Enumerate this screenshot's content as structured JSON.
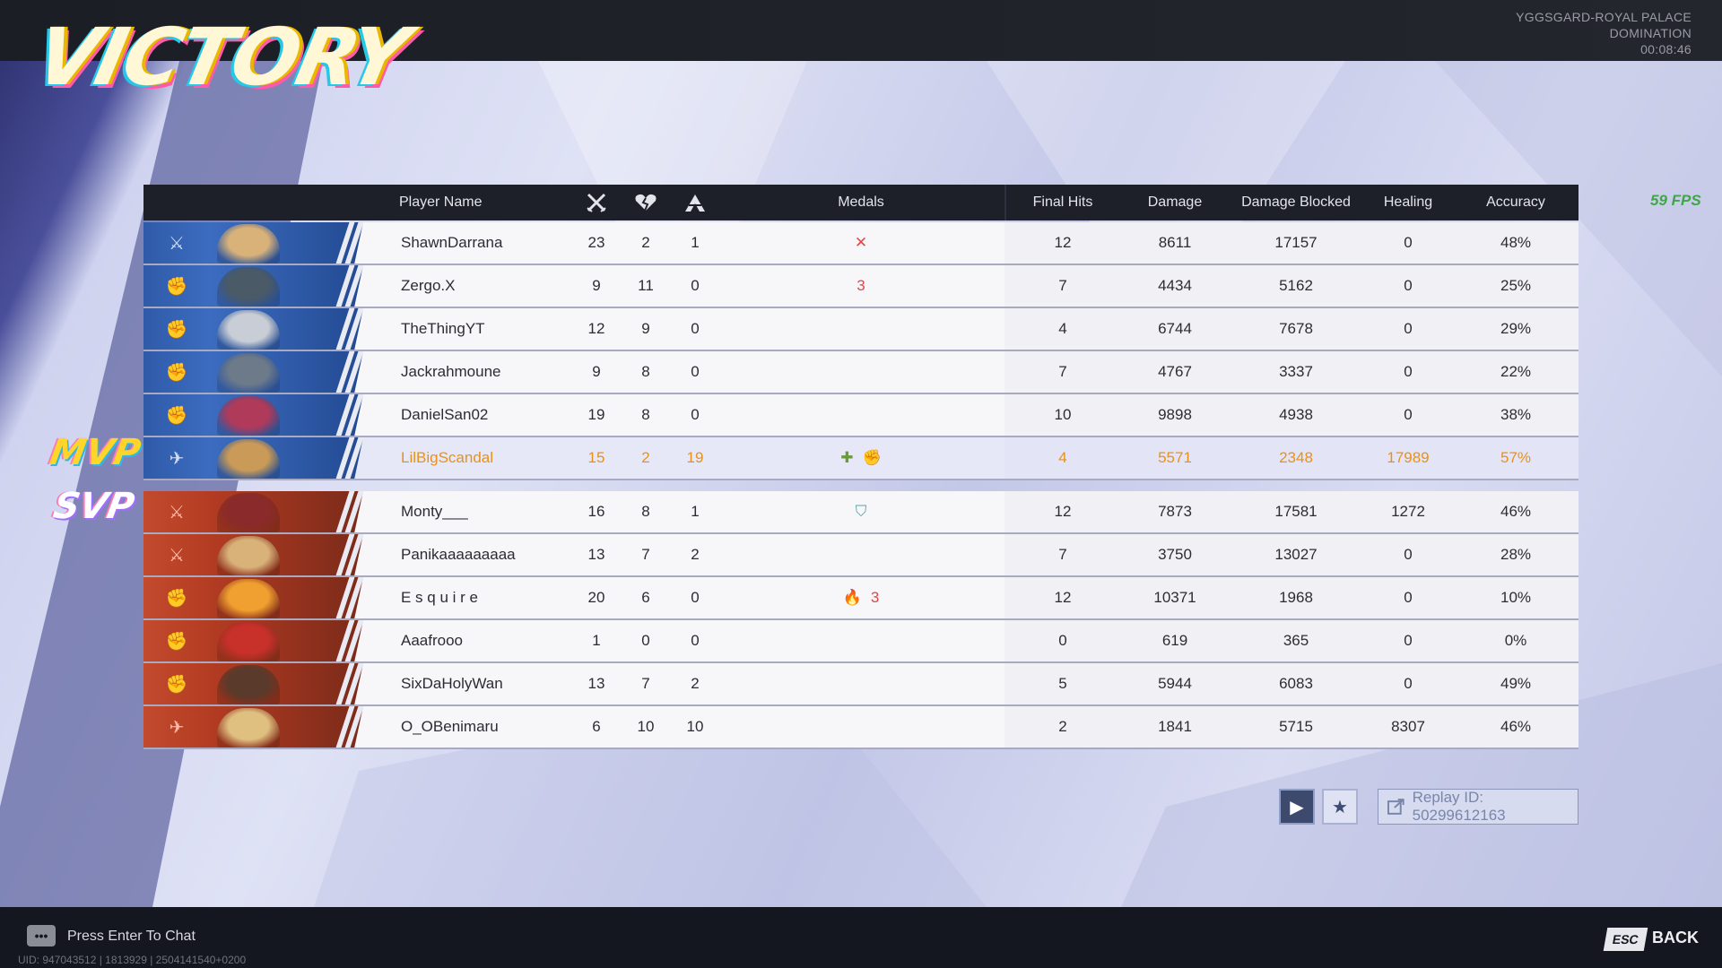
{
  "title": "VICTORY",
  "map": {
    "name": "YGGSGARD-ROYAL PALACE",
    "mode": "DOMINATION",
    "time": "00:08:46"
  },
  "fps": "59 FPS",
  "badges": {
    "mvp": "MVP",
    "svp": "SVP"
  },
  "header": {
    "player_name": "Player Name",
    "kills_icon": "crossed-swords-icon",
    "deaths_icon": "broken-heart-icon",
    "assists_icon": "helping-hand-icon",
    "medals": "Medals",
    "final_hits": "Final Hits",
    "damage": "Damage",
    "damage_blocked": "Damage Blocked",
    "healing": "Healing",
    "accuracy": "Accuracy"
  },
  "colors": {
    "blue_team": "#2f5aa8",
    "red_team": "#c24a2d",
    "mvp_text": "#e8911a",
    "fps": "#3fa64a"
  },
  "players": [
    {
      "team": "blue",
      "role": "duelist-icon",
      "name": "ShawnDarrana",
      "k": "23",
      "d": "2",
      "a": "1",
      "medals": [
        "✕"
      ],
      "fh": "12",
      "dmg": "8611",
      "blk": "17157",
      "heal": "0",
      "acc": "48%"
    },
    {
      "team": "blue",
      "role": "vanguard-icon",
      "name": "Zergo.X",
      "k": "9",
      "d": "11",
      "a": "0",
      "medals": [
        "3"
      ],
      "fh": "7",
      "dmg": "4434",
      "blk": "5162",
      "heal": "0",
      "acc": "25%"
    },
    {
      "team": "blue",
      "role": "vanguard-icon",
      "name": "TheThingYT",
      "k": "12",
      "d": "9",
      "a": "0",
      "medals": [],
      "fh": "4",
      "dmg": "6744",
      "blk": "7678",
      "heal": "0",
      "acc": "29%"
    },
    {
      "team": "blue",
      "role": "vanguard-icon",
      "name": "Jackrahmoune",
      "k": "9",
      "d": "8",
      "a": "0",
      "medals": [],
      "fh": "7",
      "dmg": "4767",
      "blk": "3337",
      "heal": "0",
      "acc": "22%"
    },
    {
      "team": "blue",
      "role": "vanguard-icon",
      "name": "DanielSan02",
      "k": "19",
      "d": "8",
      "a": "0",
      "medals": [],
      "fh": "10",
      "dmg": "9898",
      "blk": "4938",
      "heal": "0",
      "acc": "38%"
    },
    {
      "team": "blue",
      "role": "strategist-icon",
      "name": "LilBigScandal",
      "k": "15",
      "d": "2",
      "a": "19",
      "medals": [
        "✚",
        "✊"
      ],
      "fh": "4",
      "dmg": "5571",
      "blk": "2348",
      "heal": "17989",
      "acc": "57%",
      "mvp": true
    },
    {
      "team": "red",
      "role": "duelist-icon",
      "name": "Monty___",
      "k": "16",
      "d": "8",
      "a": "1",
      "medals": [
        "⛉"
      ],
      "fh": "12",
      "dmg": "7873",
      "blk": "17581",
      "heal": "1272",
      "acc": "46%"
    },
    {
      "team": "red",
      "role": "duelist-icon",
      "name": "Panikaaaaaaaaa",
      "k": "13",
      "d": "7",
      "a": "2",
      "medals": [],
      "fh": "7",
      "dmg": "3750",
      "blk": "13027",
      "heal": "0",
      "acc": "28%"
    },
    {
      "team": "red",
      "role": "vanguard-icon",
      "name": "E s q u i r e",
      "k": "20",
      "d": "6",
      "a": "0",
      "medals": [
        "🔥",
        "3"
      ],
      "fh": "12",
      "dmg": "10371",
      "blk": "1968",
      "heal": "0",
      "acc": "10%"
    },
    {
      "team": "red",
      "role": "vanguard-icon",
      "name": "Aaafrooo",
      "k": "1",
      "d": "0",
      "a": "0",
      "medals": [],
      "fh": "0",
      "dmg": "619",
      "blk": "365",
      "heal": "0",
      "acc": "0%"
    },
    {
      "team": "red",
      "role": "vanguard-icon",
      "name": "SixDaHolyWan",
      "k": "13",
      "d": "7",
      "a": "2",
      "medals": [],
      "fh": "5",
      "dmg": "5944",
      "blk": "6083",
      "heal": "0",
      "acc": "49%"
    },
    {
      "team": "red",
      "role": "strategist-icon",
      "name": "O_OBenimaru",
      "k": "6",
      "d": "10",
      "a": "10",
      "medals": [],
      "fh": "2",
      "dmg": "1841",
      "blk": "5715",
      "heal": "8307",
      "acc": "46%"
    }
  ],
  "replay": {
    "play_icon": "▶",
    "star_icon": "★",
    "id_label": "Replay ID: 50299612163"
  },
  "footer": {
    "chat": "Press Enter To Chat",
    "uid": "UID: 947043512 | 1813929 | 2504141540+0200",
    "esc_key": "ESC",
    "back": "BACK"
  }
}
